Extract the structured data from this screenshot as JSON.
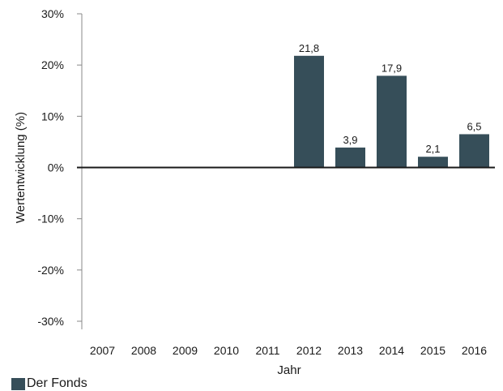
{
  "colors": {
    "bar": "#364e59",
    "axis": "#1a1a1a",
    "tick": "#888888"
  },
  "legend": {
    "label": "Der Fonds"
  },
  "chart_data": {
    "type": "bar",
    "title": "",
    "xlabel": "Jahr",
    "ylabel": "Wertentwicklung (%)",
    "categories": [
      "2007",
      "2008",
      "2009",
      "2010",
      "2011",
      "2012",
      "2013",
      "2014",
      "2015",
      "2016"
    ],
    "series": [
      {
        "name": "Der Fonds",
        "values": [
          null,
          null,
          null,
          null,
          null,
          21.8,
          3.9,
          17.9,
          2.1,
          6.5
        ],
        "labels": [
          "",
          "",
          "",
          "",
          "",
          "21,8",
          "3,9",
          "17,9",
          "2,1",
          "6,5"
        ]
      }
    ],
    "ylim": [
      -30,
      30
    ],
    "yticks": [
      30,
      20,
      10,
      0,
      -10,
      -20,
      -30
    ],
    "ytick_labels": [
      "30%",
      "20%",
      "10%",
      "0%",
      "-10%",
      "-20%",
      "-30%"
    ],
    "grid": false,
    "legend_position": "bottom-left"
  }
}
